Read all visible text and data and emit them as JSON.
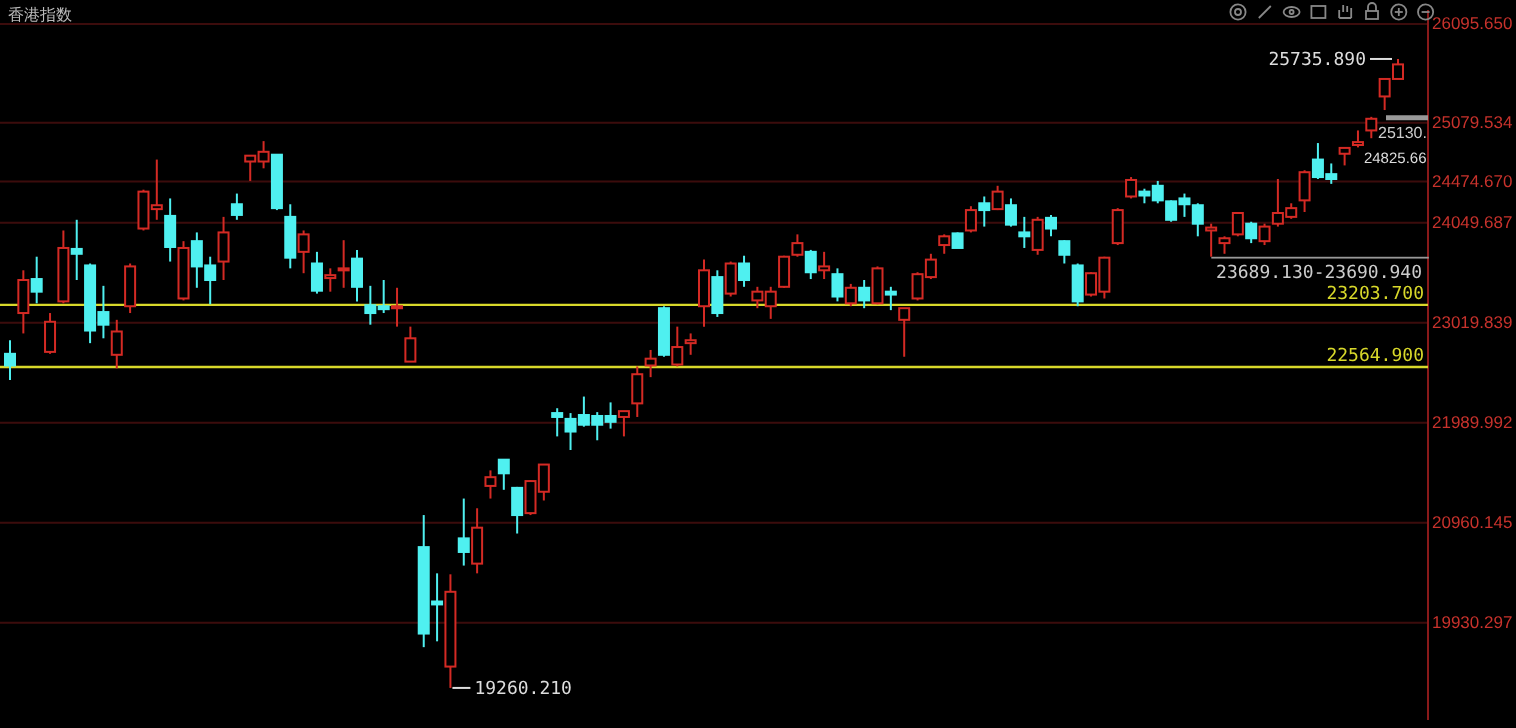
{
  "chart_data": {
    "type": "candlestick",
    "title": "香港指数",
    "categories": [
      null,
      null,
      null,
      null,
      null,
      null,
      null,
      null,
      null,
      null,
      null,
      null,
      null,
      null,
      null,
      null,
      null,
      null,
      null,
      null,
      null,
      null,
      null,
      null,
      null,
      null,
      null,
      null,
      null,
      null,
      null,
      null,
      null,
      null,
      null,
      null,
      null,
      null,
      null,
      null,
      null,
      null,
      null,
      null,
      null,
      null,
      null,
      null,
      null,
      null,
      null,
      null,
      null,
      null,
      null,
      null,
      null,
      null,
      null,
      null,
      null,
      null,
      null,
      null,
      null,
      null,
      null,
      null,
      null,
      null,
      null,
      null,
      null,
      null,
      null,
      null,
      null,
      null,
      null,
      null,
      null,
      null,
      null,
      null,
      null,
      null,
      null,
      null,
      null,
      null,
      null,
      null,
      null,
      null,
      null,
      null,
      null,
      null,
      null,
      null,
      null,
      null,
      null,
      null,
      null
    ],
    "ohlc": [
      [
        22700,
        22840,
        22430,
        22580
      ],
      [
        23120,
        23560,
        22910,
        23460
      ],
      [
        23470,
        23700,
        23220,
        23340
      ],
      [
        22720,
        23120,
        22700,
        23030
      ],
      [
        23240,
        23970,
        23220,
        23790
      ],
      [
        23780,
        24080,
        23460,
        23730
      ],
      [
        23610,
        23630,
        22810,
        22940
      ],
      [
        23130,
        23400,
        22860,
        23000
      ],
      [
        22690,
        23050,
        22550,
        22930
      ],
      [
        23190,
        23630,
        23120,
        23600
      ],
      [
        23990,
        24390,
        23970,
        24370
      ],
      [
        24190,
        24700,
        24080,
        24230
      ],
      [
        24120,
        24300,
        23650,
        23800
      ],
      [
        23270,
        23860,
        23250,
        23790
      ],
      [
        23860,
        23950,
        23380,
        23600
      ],
      [
        23610,
        23700,
        23210,
        23460
      ],
      [
        23650,
        24110,
        23460,
        23950
      ],
      [
        24240,
        24350,
        24080,
        24130
      ],
      [
        24680,
        24740,
        24480,
        24740
      ],
      [
        24680,
        24890,
        24610,
        24780
      ],
      [
        24750,
        24750,
        24180,
        24200
      ],
      [
        24110,
        24240,
        23580,
        23690
      ],
      [
        23750,
        23970,
        23530,
        23930
      ],
      [
        23630,
        23750,
        23320,
        23350
      ],
      [
        23480,
        23580,
        23340,
        23510
      ],
      [
        23560,
        23870,
        23380,
        23580
      ],
      [
        23680,
        23770,
        23240,
        23390
      ],
      [
        23200,
        23400,
        23000,
        23120
      ],
      [
        23190,
        23460,
        23120,
        23160
      ],
      [
        23170,
        23380,
        22980,
        23190
      ],
      [
        22620,
        22980,
        22620,
        22860
      ],
      [
        20710,
        21040,
        19680,
        19820
      ],
      [
        20150,
        20440,
        19740,
        20120
      ],
      [
        19480,
        20430,
        19260.21,
        20250
      ],
      [
        20800,
        21210,
        20520,
        20660
      ],
      [
        20540,
        21110,
        20440,
        20910
      ],
      [
        21340,
        21500,
        21210,
        21430
      ],
      [
        21610,
        21610,
        21300,
        21470
      ],
      [
        21320,
        21330,
        20850,
        21040
      ],
      [
        21060,
        21400,
        21040,
        21390
      ],
      [
        21280,
        21560,
        21190,
        21560
      ],
      [
        22090,
        22140,
        21850,
        22050
      ],
      [
        22030,
        22090,
        21710,
        21900
      ],
      [
        22070,
        22260,
        21950,
        21970
      ],
      [
        22060,
        22100,
        21810,
        21970
      ],
      [
        22060,
        22200,
        21930,
        22000
      ],
      [
        22050,
        22110,
        21850,
        22110
      ],
      [
        22190,
        22570,
        22050,
        22490
      ],
      [
        22580,
        22740,
        22460,
        22650
      ],
      [
        23170,
        23190,
        22670,
        22690
      ],
      [
        22590,
        22980,
        22570,
        22770
      ],
      [
        22810,
        22910,
        22690,
        22840
      ],
      [
        23190,
        23670,
        22980,
        23560
      ],
      [
        23490,
        23560,
        23080,
        23120
      ],
      [
        23320,
        23650,
        23290,
        23630
      ],
      [
        23630,
        23710,
        23390,
        23460
      ],
      [
        23250,
        23390,
        23170,
        23340
      ],
      [
        23190,
        23390,
        23060,
        23340
      ],
      [
        23390,
        23710,
        23380,
        23700
      ],
      [
        23720,
        23930,
        23700,
        23840
      ],
      [
        23750,
        23770,
        23470,
        23540
      ],
      [
        23560,
        23750,
        23470,
        23600
      ],
      [
        23520,
        23580,
        23240,
        23290
      ],
      [
        23220,
        23420,
        23190,
        23380
      ],
      [
        23380,
        23460,
        23170,
        23250
      ],
      [
        23220,
        23600,
        23210,
        23580
      ],
      [
        23340,
        23390,
        23150,
        23310
      ],
      [
        23050,
        23170,
        22670,
        23170
      ],
      [
        23270,
        23540,
        23250,
        23520
      ],
      [
        23490,
        23730,
        23470,
        23670
      ],
      [
        23820,
        23930,
        23730,
        23910
      ],
      [
        23940,
        23950,
        23790,
        23790
      ],
      [
        23970,
        24220,
        23950,
        24180
      ],
      [
        24250,
        24320,
        24010,
        24180
      ],
      [
        24190,
        24430,
        24180,
        24370
      ],
      [
        24230,
        24300,
        24010,
        24030
      ],
      [
        23950,
        24110,
        23790,
        23910
      ],
      [
        23770,
        24110,
        23720,
        24080
      ],
      [
        24100,
        24130,
        23910,
        23990
      ],
      [
        23860,
        23870,
        23630,
        23720
      ],
      [
        23610,
        23630,
        23190,
        23240
      ],
      [
        23310,
        23540,
        23290,
        23530
      ],
      [
        23340,
        23700,
        23270,
        23690
      ],
      [
        23840,
        24200,
        23820,
        24180
      ],
      [
        24320,
        24520,
        24300,
        24490
      ],
      [
        24370,
        24400,
        24250,
        24330
      ],
      [
        24430,
        24480,
        24250,
        24280
      ],
      [
        24270,
        24280,
        24060,
        24080
      ],
      [
        24300,
        24350,
        24110,
        24240
      ],
      [
        24230,
        24250,
        23910,
        24040
      ],
      [
        23970,
        24040,
        23700,
        24000
      ],
      [
        23840,
        23910,
        23730,
        23890
      ],
      [
        23930,
        24160,
        23910,
        24150
      ],
      [
        24040,
        24060,
        23840,
        23890
      ],
      [
        23860,
        24040,
        23820,
        24010
      ],
      [
        24040,
        24500,
        24010,
        24150
      ],
      [
        24110,
        24250,
        24090,
        24200
      ],
      [
        24280,
        24590,
        24160,
        24570
      ],
      [
        24700,
        24870,
        24500,
        24520
      ],
      [
        24550,
        24660,
        24450,
        24500
      ],
      [
        24760,
        24820,
        24640,
        24820
      ],
      [
        24850,
        25000,
        24825.66,
        24880
      ],
      [
        25000,
        25140,
        24920,
        25120
      ],
      [
        25350,
        25530,
        25210,
        25530
      ],
      [
        25530,
        25735.89,
        25530,
        25680
      ]
    ],
    "ylim": [
      18930,
      26240
    ],
    "yticks": [
      {
        "value": 26095.65,
        "label": "26095.650"
      },
      {
        "value": 25079.534,
        "label": "25079.534"
      },
      {
        "value": 24474.67,
        "label": "24474.670"
      },
      {
        "value": 24049.687,
        "label": "24049.687"
      },
      {
        "value": 23019.839,
        "label": "23019.839"
      },
      {
        "value": 21989.992,
        "label": "21989.992"
      },
      {
        "value": 20960.145,
        "label": "20960.145"
      },
      {
        "value": 19930.297,
        "label": "19930.297"
      }
    ],
    "grid": "y",
    "ref_lines": [
      {
        "axis": "y",
        "value": 23203.7,
        "label": "23203.700",
        "color": "#d8d82a"
      },
      {
        "axis": "y",
        "value": 22564.9,
        "label": "22564.900",
        "color": "#d8d82a"
      },
      {
        "axis": "y",
        "value": 25130,
        "label": "25130."
      }
    ],
    "bands": [
      {
        "axis": "y",
        "from": 23689.13,
        "to": 23690.94,
        "label": "23689.130-23690.940"
      }
    ],
    "annotations": [
      "25735.890",
      "19260.210",
      "24825.66"
    ]
  }
}
